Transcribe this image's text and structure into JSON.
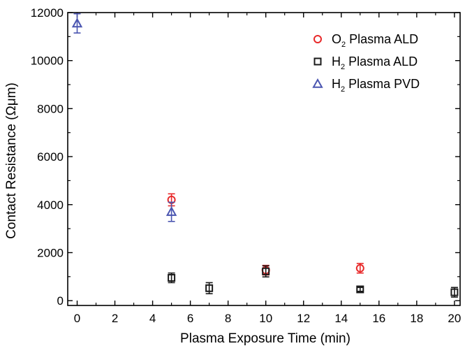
{
  "chart_data": {
    "type": "scatter",
    "xlabel": "Plasma Exposure Time (min)",
    "ylabel": "Contact Resistance (Ωμm)",
    "xlim": [
      -0.5,
      20.3
    ],
    "ylim": [
      -200,
      12000
    ],
    "xticks": [
      "0",
      "2",
      "4",
      "6",
      "8",
      "10",
      "12",
      "14",
      "16",
      "18",
      "20"
    ],
    "yticks": [
      "0",
      "2000",
      "4000",
      "6000",
      "8000",
      "10000",
      "12000"
    ],
    "grid": false,
    "legend_position": "top-right",
    "series": [
      {
        "name": "O2 Plasma ALD",
        "legend_main": "O",
        "legend_sub": "2",
        "legend_rest": " Plasma ALD",
        "marker": "circle",
        "color": "#e8292a",
        "points": [
          {
            "x": 5,
            "y": 4200,
            "err": 250
          },
          {
            "x": 10,
            "y": 1270,
            "err": 200
          },
          {
            "x": 15,
            "y": 1350,
            "err": 200
          }
        ]
      },
      {
        "name": "H2 Plasma ALD",
        "legend_main": "H",
        "legend_sub": "2",
        "legend_rest": " Plasma ALD",
        "marker": "square",
        "color": "#1a1a1a",
        "points": [
          {
            "x": 5,
            "y": 950,
            "err": 200
          },
          {
            "x": 7,
            "y": 520,
            "err": 230
          },
          {
            "x": 10,
            "y": 1220,
            "err": 230
          },
          {
            "x": 15,
            "y": 470,
            "err": 80
          },
          {
            "x": 20,
            "y": 350,
            "err": 200
          }
        ]
      },
      {
        "name": "H2 Plasma PVD",
        "legend_main": "H",
        "legend_sub": "2",
        "legend_rest": " Plasma PVD",
        "marker": "triangle",
        "color": "#4a55b0",
        "points": [
          {
            "x": 0,
            "y": 11550,
            "err": 400
          },
          {
            "x": 5,
            "y": 3700,
            "err": 400
          }
        ]
      }
    ]
  }
}
